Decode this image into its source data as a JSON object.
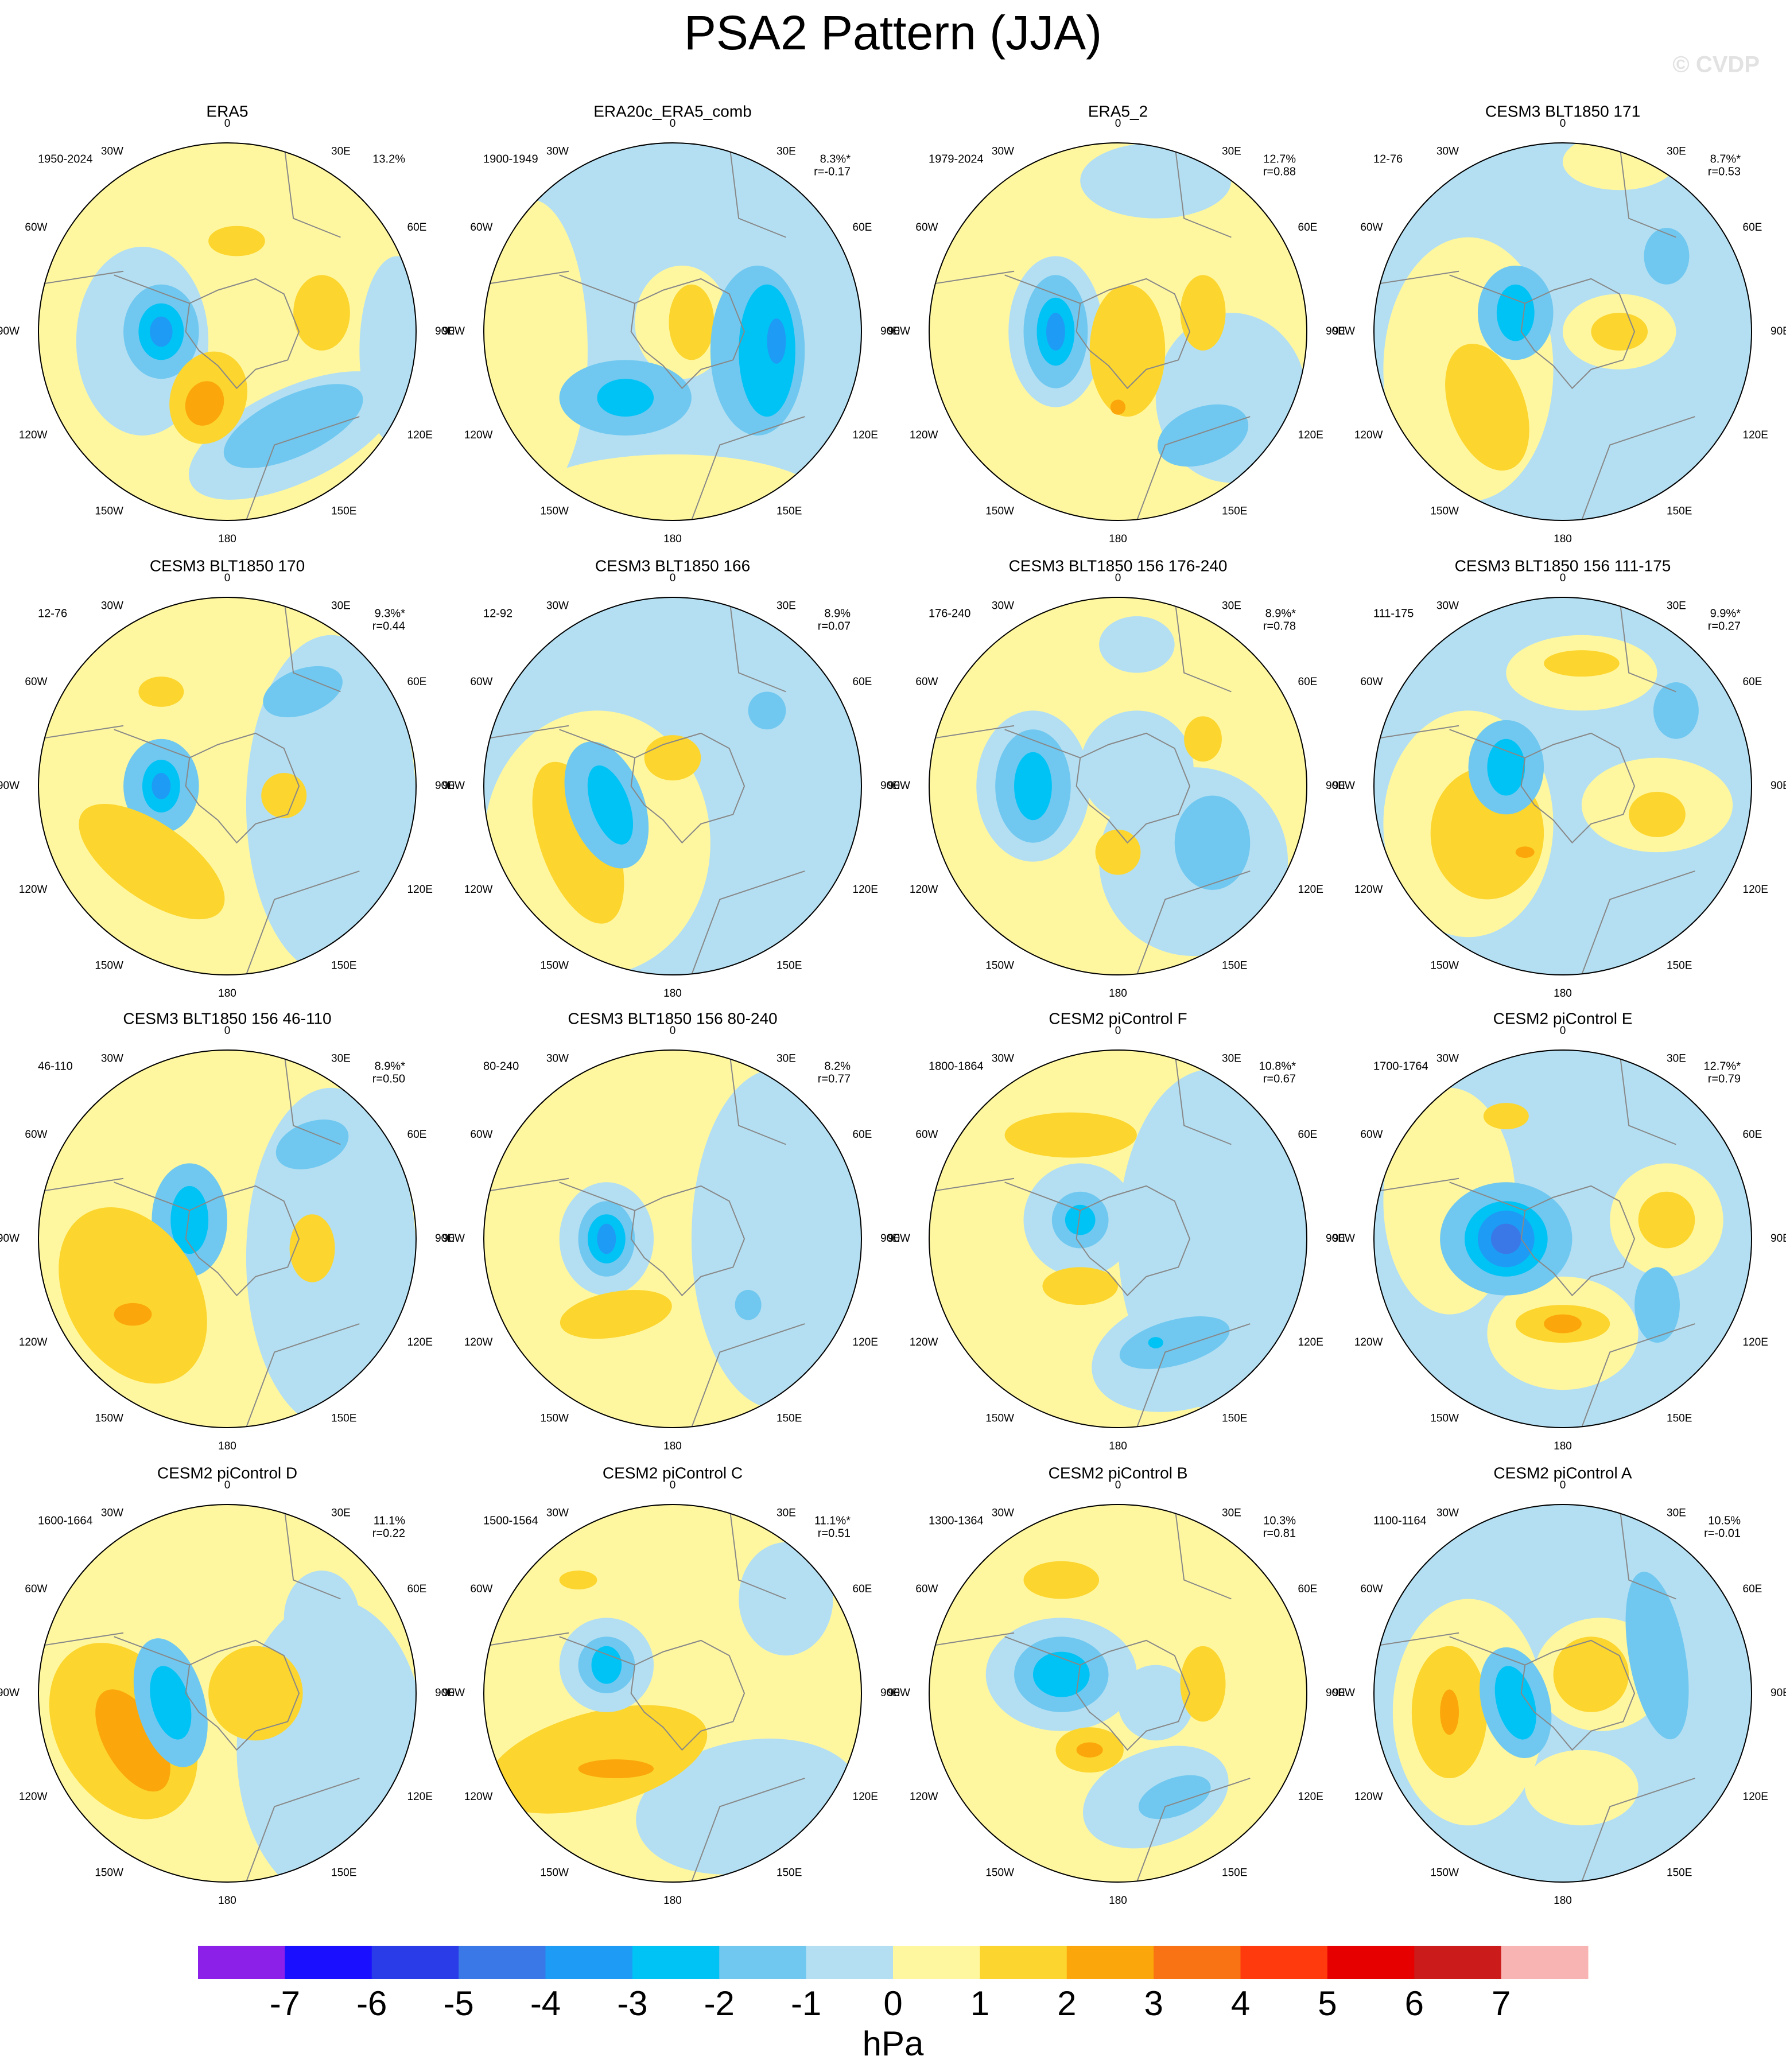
{
  "title": "PSA2 Pattern (JJA)",
  "watermark": "© CVDP",
  "lon_labels": [
    "0",
    "30E",
    "60E",
    "90E",
    "120E",
    "150E",
    "180",
    "150W",
    "120W",
    "90W",
    "60W",
    "30W"
  ],
  "panels": [
    {
      "title": "ERA5",
      "period": "1950-2024",
      "percent": "13.2%"
    },
    {
      "title": "ERA20c_ERA5_comb",
      "period": "1900-1949",
      "percent": "8.3%*",
      "r": "r=-0.17"
    },
    {
      "title": "ERA5_2",
      "period": "1979-2024",
      "percent": "12.7%",
      "r": "r=0.88"
    },
    {
      "title": "CESM3 BLT1850 171",
      "period": "12-76",
      "percent": "8.7%*",
      "r": "r=0.53"
    },
    {
      "title": "CESM3 BLT1850 170",
      "period": "12-76",
      "percent": "9.3%*",
      "r": "r=0.44"
    },
    {
      "title": "CESM3 BLT1850 166",
      "period": "12-92",
      "percent": "8.9%",
      "r": "r=0.07"
    },
    {
      "title": "CESM3 BLT1850 156 176-240",
      "period": "176-240",
      "percent": "8.9%*",
      "r": "r=0.78"
    },
    {
      "title": "CESM3 BLT1850 156 111-175",
      "period": "111-175",
      "percent": "9.9%*",
      "r": "r=0.27"
    },
    {
      "title": "CESM3 BLT1850 156 46-110",
      "period": "46-110",
      "percent": "8.9%*",
      "r": "r=0.50"
    },
    {
      "title": "CESM3 BLT1850 156 80-240",
      "period": "80-240",
      "percent": "8.2%",
      "r": "r=0.77"
    },
    {
      "title": "CESM2 piControl F",
      "period": "1800-1864",
      "percent": "10.8%*",
      "r": "r=0.67"
    },
    {
      "title": "CESM2 piControl E",
      "period": "1700-1764",
      "percent": "12.7%*",
      "r": "r=0.79"
    },
    {
      "title": "CESM2 piControl D",
      "period": "1600-1664",
      "percent": "11.1%",
      "r": "r=0.22"
    },
    {
      "title": "CESM2 piControl C",
      "period": "1500-1564",
      "percent": "11.1%*",
      "r": "r=0.51"
    },
    {
      "title": "CESM2 piControl B",
      "period": "1300-1364",
      "percent": "10.3%",
      "r": "r=0.81"
    },
    {
      "title": "CESM2 piControl A",
      "period": "1100-1164",
      "percent": "10.5%",
      "r": "r=-0.01"
    }
  ],
  "colorbar": {
    "levels": [
      -7,
      -6,
      -5,
      -4,
      -3,
      -2,
      -1,
      0,
      1,
      2,
      3,
      4,
      5,
      6,
      7
    ],
    "colors": [
      "#8c1fe8",
      "#1a10ff",
      "#2a3ce8",
      "#3a78e8",
      "#1e9bf5",
      "#00c3f5",
      "#70c8f0",
      "#b4dff2",
      "#fff7a0",
      "#fcd52e",
      "#fba60a",
      "#f97314",
      "#ff3a0d",
      "#e60000",
      "#cc1b1b",
      "#f8b3b3"
    ],
    "unit": "hPa"
  }
}
